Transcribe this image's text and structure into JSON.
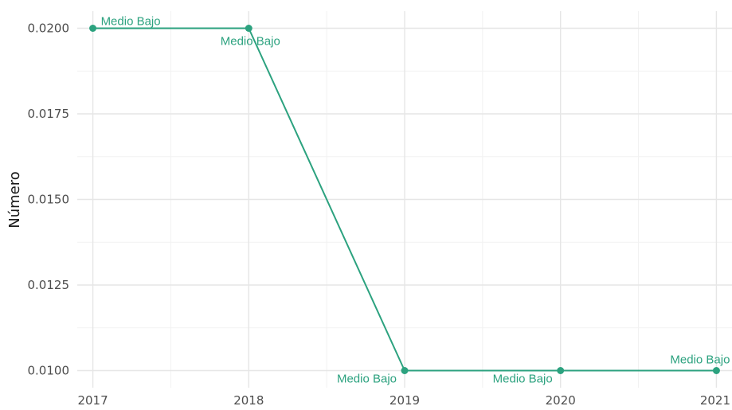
{
  "chart_data": {
    "type": "line",
    "title": "",
    "xlabel": "",
    "ylabel": "Número",
    "x": [
      2017,
      2018,
      2019,
      2020,
      2021
    ],
    "series": [
      {
        "values": [
          0.02,
          0.02,
          0.01,
          0.01,
          0.01
        ],
        "point_labels": [
          "Medio Bajo",
          "Medio Bajo",
          "Medio Bajo",
          "Medio Bajo",
          "Medio Bajo"
        ],
        "color": "#2CA27F"
      }
    ],
    "xticks": [
      "2017",
      "2018",
      "2019",
      "2020",
      "2021"
    ],
    "yticks": [
      "0.0100",
      "0.0125",
      "0.0150",
      "0.0175",
      "0.0200"
    ],
    "ylim": [
      0.0095,
      0.0205
    ],
    "xlim": [
      2016.9,
      2021.1
    ],
    "grid": true,
    "legend": "none"
  }
}
